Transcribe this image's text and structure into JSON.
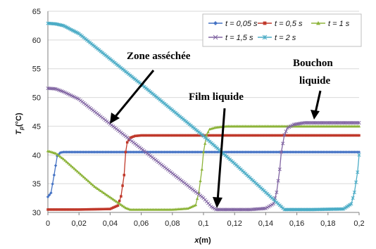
{
  "chart_data": {
    "type": "line",
    "xlabel": "x(m)",
    "ylabel": "Tp(°C)",
    "ylabel_main": "T",
    "ylabel_sub": "p",
    "ylabel_unit": "(°C)",
    "xlabel_main": "x",
    "xlabel_unit": "(m)",
    "xlim": [
      0,
      0.2
    ],
    "ylim": [
      30,
      65
    ],
    "x_ticks": [
      "0",
      "0,02",
      "0,04",
      "0,06",
      "0,08",
      "0,1",
      "0,12",
      "0,14",
      "0,16",
      "0,18",
      "0,2"
    ],
    "y_ticks": [
      "30",
      "35",
      "40",
      "45",
      "50",
      "55",
      "60",
      "65"
    ],
    "grid": true,
    "legend_position": "top-right",
    "series": [
      {
        "name": "t = 0,05 s",
        "color": "#4472C4",
        "marker": "diamond",
        "x": [
          0,
          0.002,
          0.004,
          0.006,
          0.008,
          0.01,
          0.02,
          0.05,
          0.1,
          0.15,
          0.2
        ],
        "y": [
          32.7,
          33.4,
          36.5,
          39.8,
          40.4,
          40.5,
          40.5,
          40.5,
          40.5,
          40.5,
          40.5
        ]
      },
      {
        "name": "t = 0,5 s",
        "color": "#C0392B",
        "marker": "square",
        "x": [
          0,
          0.02,
          0.04,
          0.045,
          0.047,
          0.049,
          0.05,
          0.051,
          0.053,
          0.056,
          0.06,
          0.08,
          0.1,
          0.15,
          0.2
        ],
        "y": [
          30.5,
          30.5,
          30.6,
          31.2,
          32.8,
          36.5,
          40.5,
          42.2,
          43.0,
          43.3,
          43.4,
          43.4,
          43.4,
          43.4,
          43.4
        ]
      },
      {
        "name": "t = 1 s",
        "color": "#8DB43A",
        "marker": "triangle",
        "x": [
          0,
          0.005,
          0.01,
          0.03,
          0.05,
          0.053,
          0.056,
          0.08,
          0.09,
          0.095,
          0.097,
          0.099,
          0.1,
          0.102,
          0.104,
          0.108,
          0.115,
          0.15,
          0.2
        ],
        "y": [
          40.7,
          40.3,
          39.3,
          34.5,
          30.8,
          30.5,
          30.5,
          30.5,
          30.7,
          31.3,
          33.5,
          37.5,
          40.5,
          43.5,
          44.5,
          44.8,
          45.0,
          45.0,
          45.0
        ]
      },
      {
        "name": "t = 1,5 s",
        "color": "#8064A2",
        "marker": "x",
        "x": [
          0,
          0.005,
          0.01,
          0.02,
          0.04,
          0.06,
          0.08,
          0.1,
          0.105,
          0.108,
          0.13,
          0.14,
          0.145,
          0.147,
          0.149,
          0.15,
          0.152,
          0.154,
          0.158,
          0.165,
          0.2
        ],
        "y": [
          51.6,
          51.5,
          51.0,
          49.7,
          45.4,
          41.1,
          36.8,
          32.5,
          31.0,
          30.5,
          30.5,
          30.7,
          31.5,
          33.5,
          37.5,
          40.5,
          43.5,
          44.7,
          45.3,
          45.6,
          45.6
        ]
      },
      {
        "name": "t = 2 s",
        "color": "#4BACC6",
        "marker": "star",
        "x": [
          0,
          0.005,
          0.01,
          0.02,
          0.04,
          0.06,
          0.08,
          0.1,
          0.12,
          0.14,
          0.15,
          0.152,
          0.17,
          0.19,
          0.195,
          0.197,
          0.199,
          0.2
        ],
        "y": [
          62.9,
          62.8,
          62.5,
          61.1,
          56.7,
          52.3,
          47.8,
          43.3,
          38.5,
          33.5,
          31.0,
          30.5,
          30.5,
          30.6,
          31.5,
          33.5,
          37.0,
          40.0
        ]
      }
    ],
    "annotations": [
      {
        "id": "zone-assechee",
        "text": "Zone asséchée"
      },
      {
        "id": "film-liquide",
        "text": "Film liquide"
      },
      {
        "id": "bouchon-liquide",
        "lines": [
          "Bouchon",
          "liquide"
        ]
      }
    ]
  }
}
